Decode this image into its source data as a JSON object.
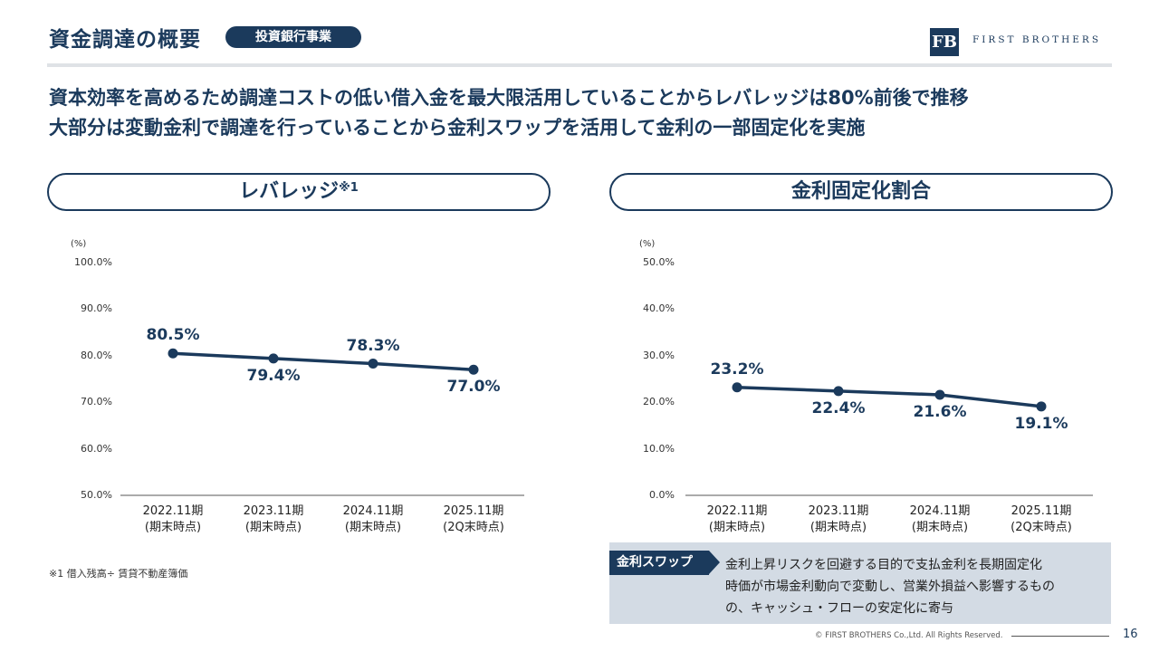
{
  "header": {
    "title": "資金調達の概要",
    "badge": "投資銀行事業",
    "logo_mark": "FB",
    "logo_text": "FIRST BROTHERS"
  },
  "lead": [
    "資本効率を高めるため調達コストの低い借入金を最大限活用していることからレバレッジは80%前後で推移",
    "大部分は変動金利で調達を行っていることから金利スワップを活用して金利の一部固定化を実施"
  ],
  "panels": {
    "left_title": "レバレッジ",
    "left_title_sup": "※1",
    "right_title": "金利固定化割合"
  },
  "chart_data": [
    {
      "type": "line",
      "title": "レバレッジ※1",
      "unit_label": "(%)",
      "categories": [
        [
          "2022.11期",
          "(期末時点)"
        ],
        [
          "2023.11期",
          "(期末時点)"
        ],
        [
          "2024.11期",
          "(期末時点)"
        ],
        [
          "2025.11期",
          "(2Q末時点)"
        ]
      ],
      "values": [
        80.5,
        79.4,
        78.3,
        77.0
      ],
      "data_labels": [
        "80.5%",
        "79.4%",
        "78.3%",
        "77.0%"
      ],
      "label_position": [
        "above",
        "below",
        "above",
        "below"
      ],
      "ylim": [
        50,
        100
      ],
      "yticks": [
        "100.0%",
        "90.0%",
        "80.0%",
        "70.0%",
        "60.0%",
        "50.0%"
      ],
      "grid": false,
      "color": "#1b3a5c"
    },
    {
      "type": "line",
      "title": "金利固定化割合",
      "unit_label": "(%)",
      "categories": [
        [
          "2022.11期",
          "(期末時点)"
        ],
        [
          "2023.11期",
          "(期末時点)"
        ],
        [
          "2024.11期",
          "(期末時点)"
        ],
        [
          "2025.11期",
          "(2Q末時点)"
        ]
      ],
      "values": [
        23.2,
        22.4,
        21.6,
        19.1
      ],
      "data_labels": [
        "23.2%",
        "22.4%",
        "21.6%",
        "19.1%"
      ],
      "label_position": [
        "above",
        "below",
        "below",
        "below"
      ],
      "ylim": [
        0,
        50
      ],
      "yticks": [
        "50.0%",
        "40.0%",
        "30.0%",
        "20.0%",
        "10.0%",
        "0.0%"
      ],
      "grid": false,
      "color": "#1b3a5c"
    }
  ],
  "footnote": "※1 借入残高÷ 賃貸不動産簿価",
  "note": {
    "tag": "金利スワップ",
    "lines": [
      "金利上昇リスクを回避する目的で支払金利を長期固定化",
      "時価が市場金利動向で変動し、営業外損益へ影響するもの",
      "の、キャッシュ・フローの安定化に寄与"
    ]
  },
  "footer": {
    "copyright": "© FIRST BROTHERS Co.,Ltd. All Rights Reserved.",
    "page": "16"
  }
}
